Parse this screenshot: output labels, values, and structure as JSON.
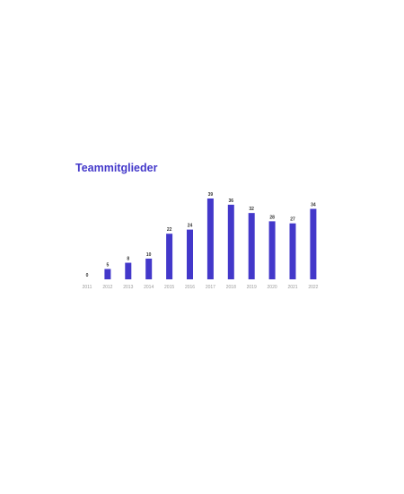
{
  "colors": {
    "accent": "#4338ca",
    "title": "#4338ca"
  },
  "chart_data": {
    "type": "bar",
    "title": "Teammitglieder",
    "categories": [
      "2011",
      "2012",
      "2013",
      "2014",
      "2015",
      "2016",
      "2017",
      "2018",
      "2019",
      "2020",
      "2021",
      "2022"
    ],
    "values": [
      0,
      5,
      8,
      10,
      22,
      24,
      39,
      36,
      32,
      28,
      27,
      34
    ],
    "xlabel": "",
    "ylabel": "",
    "ylim": [
      0,
      39
    ],
    "grid": false,
    "legend": "none"
  }
}
